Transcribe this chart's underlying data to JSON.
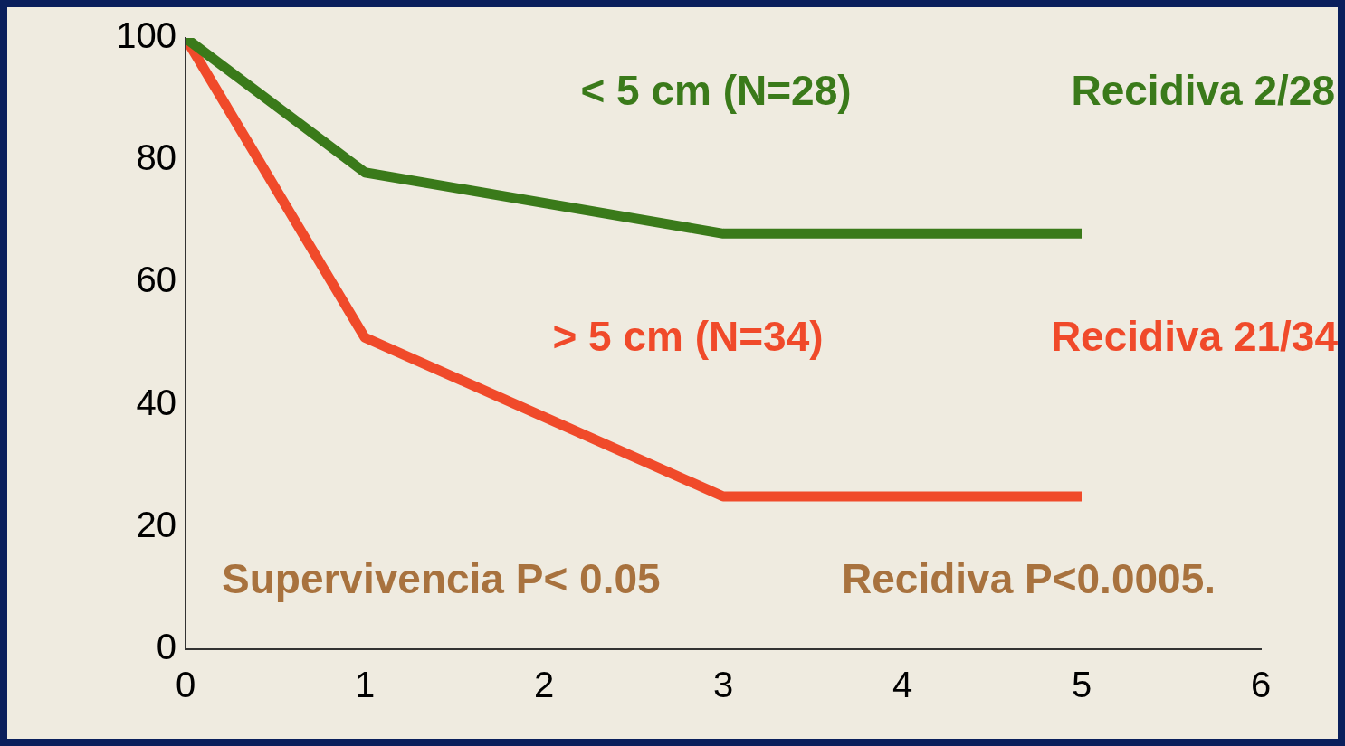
{
  "chart_data": {
    "type": "line",
    "x": [
      0,
      1,
      3,
      5
    ],
    "series": [
      {
        "name": "< 5 cm (N=28)",
        "color": "#3a7a1a",
        "values": [
          100,
          78,
          68,
          68
        ]
      },
      {
        "name": "> 5 cm (N=34)",
        "color": "#f04a2a",
        "values": [
          100,
          51,
          25,
          25
        ]
      }
    ],
    "xlim": [
      0,
      6
    ],
    "xticks": [
      0,
      1,
      2,
      3,
      4,
      5,
      6
    ],
    "ylim": [
      0,
      100
    ],
    "yticks": [
      0,
      20,
      40,
      60,
      80,
      100
    ],
    "grid": false,
    "legend": false,
    "marker": "none",
    "line_style": "solid",
    "annotations": [
      "Recidiva 2/28",
      "Recidiva 21/34",
      "Supervivencia P< 0.05",
      "Recidiva P<0.0005."
    ]
  }
}
